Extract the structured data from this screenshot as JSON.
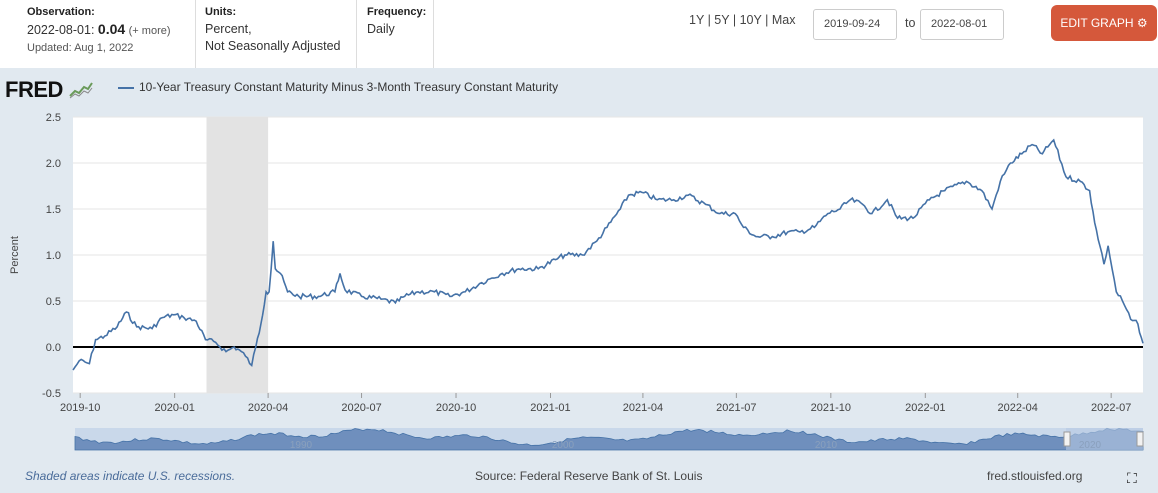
{
  "header": {
    "observation_label": "Observation:",
    "observation_date": "2022-08-01:",
    "observation_value": "0.04",
    "observation_more": "(+ more)",
    "updated": "Updated: Aug 1, 2022",
    "units_label": "Units:",
    "units_line1": "Percent,",
    "units_line2": "Not Seasonally Adjusted",
    "frequency_label": "Frequency:",
    "frequency_value": "Daily",
    "range_1y": "1Y",
    "range_5y": "5Y",
    "range_10y": "10Y",
    "range_max": "Max",
    "range_sep": "|",
    "date_from": "2019-09-24",
    "date_to_label": "to",
    "date_to": "2022-08-01",
    "edit_label": "EDIT GRAPH"
  },
  "logo": "FRED",
  "footer": {
    "recession_note": "Shaded areas indicate U.S. recessions.",
    "source": "Source: Federal Reserve Bank of St. Louis",
    "site": "fred.stlouisfed.org"
  },
  "colors": {
    "series": "#4572a7",
    "recession": "#e3e3e3",
    "panel": "#e1e9f0",
    "edit_button": "#d5583b"
  },
  "icons": {
    "logo_chart": "chart-icon",
    "edit": "gear-icon",
    "fullscreen": "expand-icon"
  },
  "chart_data": {
    "type": "line",
    "title": "",
    "xlabel": "",
    "ylabel": "Percent",
    "ylim": [
      -0.5,
      2.5
    ],
    "y_ticks": [
      "2.5",
      "2.0",
      "1.5",
      "1.0",
      "0.5",
      "0.0",
      "-0.5"
    ],
    "x_ticks": [
      "2019-10",
      "2020-01",
      "2020-04",
      "2020-07",
      "2020-10",
      "2021-01",
      "2021-04",
      "2021-07",
      "2021-10",
      "2022-01",
      "2022-04",
      "2022-07"
    ],
    "grid": true,
    "zero_line": true,
    "recession": [
      "2020-02",
      "2020-04"
    ],
    "series": [
      {
        "name": "10-Year Treasury Constant Maturity Minus 3-Month Treasury Constant Maturity",
        "points": [
          [
            "2019-09-24",
            -0.25
          ],
          [
            "2019-09-30",
            -0.15
          ],
          [
            "2019-10-10",
            -0.18
          ],
          [
            "2019-10-16",
            0.08
          ],
          [
            "2019-10-25",
            0.12
          ],
          [
            "2019-11-06",
            0.22
          ],
          [
            "2019-11-15",
            0.38
          ],
          [
            "2019-11-25",
            0.22
          ],
          [
            "2019-12-10",
            0.2
          ],
          [
            "2019-12-20",
            0.32
          ],
          [
            "2019-12-31",
            0.35
          ],
          [
            "2020-01-10",
            0.32
          ],
          [
            "2020-01-22",
            0.28
          ],
          [
            "2020-01-31",
            0.08
          ],
          [
            "2020-02-10",
            0.05
          ],
          [
            "2020-02-20",
            -0.05
          ],
          [
            "2020-02-28",
            0.0
          ],
          [
            "2020-03-06",
            -0.05
          ],
          [
            "2020-03-10",
            -0.1
          ],
          [
            "2020-03-16",
            -0.2
          ],
          [
            "2020-03-20",
            0.0
          ],
          [
            "2020-03-25",
            0.25
          ],
          [
            "2020-03-30",
            0.6
          ],
          [
            "2020-04-02",
            0.6
          ],
          [
            "2020-04-06",
            1.15
          ],
          [
            "2020-04-08",
            0.85
          ],
          [
            "2020-04-13",
            0.8
          ],
          [
            "2020-04-20",
            0.6
          ],
          [
            "2020-05-01",
            0.55
          ],
          [
            "2020-05-20",
            0.55
          ],
          [
            "2020-06-05",
            0.6
          ],
          [
            "2020-06-10",
            0.8
          ],
          [
            "2020-06-15",
            0.62
          ],
          [
            "2020-07-01",
            0.55
          ],
          [
            "2020-07-20",
            0.52
          ],
          [
            "2020-08-03",
            0.48
          ],
          [
            "2020-08-12",
            0.55
          ],
          [
            "2020-08-25",
            0.6
          ],
          [
            "2020-09-10",
            0.6
          ],
          [
            "2020-09-25",
            0.55
          ],
          [
            "2020-10-10",
            0.6
          ],
          [
            "2020-10-26",
            0.7
          ],
          [
            "2020-11-05",
            0.75
          ],
          [
            "2020-11-15",
            0.8
          ],
          [
            "2020-12-01",
            0.85
          ],
          [
            "2020-12-20",
            0.85
          ],
          [
            "2021-01-06",
            0.95
          ],
          [
            "2021-01-15",
            1.0
          ],
          [
            "2021-02-01",
            1.0
          ],
          [
            "2021-02-15",
            1.15
          ],
          [
            "2021-02-25",
            1.3
          ],
          [
            "2021-03-10",
            1.5
          ],
          [
            "2021-03-18",
            1.65
          ],
          [
            "2021-03-31",
            1.68
          ],
          [
            "2021-04-15",
            1.6
          ],
          [
            "2021-05-01",
            1.6
          ],
          [
            "2021-05-15",
            1.65
          ],
          [
            "2021-06-01",
            1.55
          ],
          [
            "2021-06-15",
            1.45
          ],
          [
            "2021-06-30",
            1.45
          ],
          [
            "2021-07-08",
            1.3
          ],
          [
            "2021-07-20",
            1.2
          ],
          [
            "2021-08-05",
            1.2
          ],
          [
            "2021-08-20",
            1.25
          ],
          [
            "2021-09-01",
            1.25
          ],
          [
            "2021-09-15",
            1.3
          ],
          [
            "2021-09-28",
            1.45
          ],
          [
            "2021-10-10",
            1.5
          ],
          [
            "2021-10-20",
            1.6
          ],
          [
            "2021-11-01",
            1.55
          ],
          [
            "2021-11-10",
            1.45
          ],
          [
            "2021-11-25",
            1.6
          ],
          [
            "2021-12-05",
            1.4
          ],
          [
            "2021-12-20",
            1.4
          ],
          [
            "2022-01-05",
            1.6
          ],
          [
            "2022-01-20",
            1.7
          ],
          [
            "2022-02-10",
            1.8
          ],
          [
            "2022-02-25",
            1.7
          ],
          [
            "2022-03-07",
            1.5
          ],
          [
            "2022-03-15",
            1.8
          ],
          [
            "2022-03-25",
            2.0
          ],
          [
            "2022-04-05",
            2.1
          ],
          [
            "2022-04-15",
            2.2
          ],
          [
            "2022-04-25",
            2.1
          ],
          [
            "2022-05-02",
            2.2
          ],
          [
            "2022-05-06",
            2.25
          ],
          [
            "2022-05-18",
            1.85
          ],
          [
            "2022-06-01",
            1.8
          ],
          [
            "2022-06-10",
            1.7
          ],
          [
            "2022-06-15",
            1.35
          ],
          [
            "2022-06-20",
            1.1
          ],
          [
            "2022-06-24",
            0.9
          ],
          [
            "2022-06-28",
            1.1
          ],
          [
            "2022-07-06",
            0.6
          ],
          [
            "2022-07-12",
            0.5
          ],
          [
            "2022-07-20",
            0.3
          ],
          [
            "2022-07-27",
            0.25
          ],
          [
            "2022-08-01",
            0.04
          ]
        ]
      }
    ],
    "navigator": {
      "labels": [
        "1990",
        "2000",
        "2010",
        "2020"
      ]
    }
  }
}
